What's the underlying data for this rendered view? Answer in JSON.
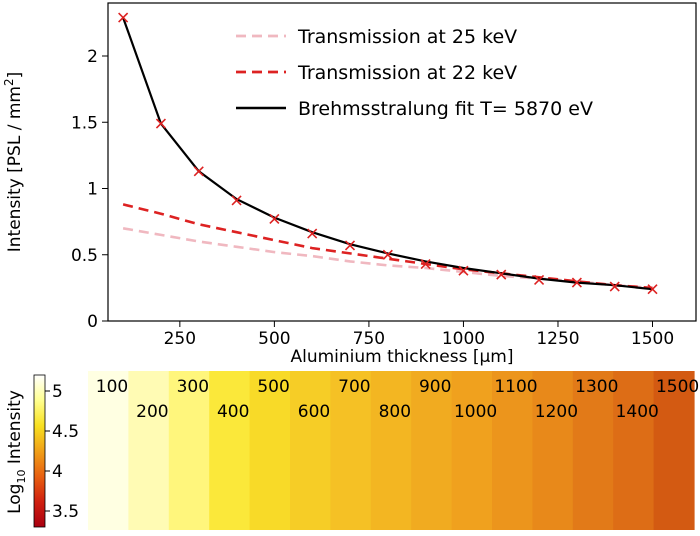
{
  "chart_data": [
    {
      "type": "line",
      "xlabel": "Aluminium thickness [µm]",
      "ylabel_main": "Intensity [PSL / mm",
      "ylabel_sup": "2",
      "ylabel_end": "]",
      "xlim": [
        60,
        1615
      ],
      "ylim": [
        0,
        2.4
      ],
      "xticks": [
        "250",
        "500",
        "750",
        "1000",
        "1250",
        "1500"
      ],
      "yticks": [
        "0",
        "0.5",
        "1",
        "1.5",
        "2"
      ],
      "grid": false,
      "legend_position": "top-right",
      "series": [
        {
          "name": "Transmission at 25 keV",
          "style": "dashed",
          "color": "#f0b8c0",
          "x": [
            100,
            200,
            300,
            400,
            500,
            600,
            700,
            800,
            900,
            1000,
            1100,
            1200,
            1300,
            1400,
            1500
          ],
          "y": [
            0.7,
            0.65,
            0.6,
            0.56,
            0.52,
            0.49,
            0.45,
            0.42,
            0.4,
            0.37,
            0.34,
            0.32,
            0.3,
            0.27,
            0.25
          ]
        },
        {
          "name": "Transmission at 22 keV",
          "style": "dashed",
          "color": "#dd2222",
          "x": [
            100,
            200,
            300,
            400,
            500,
            600,
            700,
            800,
            900,
            1000,
            1100,
            1200,
            1300,
            1400,
            1500
          ],
          "y": [
            0.88,
            0.81,
            0.73,
            0.67,
            0.61,
            0.55,
            0.51,
            0.47,
            0.43,
            0.39,
            0.36,
            0.33,
            0.3,
            0.27,
            0.25
          ]
        },
        {
          "name": "Brehmsstralung fit T= 5870 eV",
          "style": "solid",
          "color": "#000000",
          "x": [
            100,
            200,
            300,
            400,
            500,
            600,
            700,
            800,
            900,
            1000,
            1100,
            1200,
            1300,
            1400,
            1500
          ],
          "y": [
            2.29,
            1.49,
            1.13,
            0.92,
            0.78,
            0.67,
            0.58,
            0.51,
            0.45,
            0.4,
            0.36,
            0.32,
            0.29,
            0.27,
            0.24
          ]
        }
      ],
      "markers": {
        "symbol": "x",
        "color": "#dd2222",
        "x": [
          100,
          200,
          300,
          400,
          500,
          600,
          700,
          800,
          900,
          1000,
          1100,
          1200,
          1300,
          1400,
          1500
        ],
        "y": [
          2.29,
          1.49,
          1.13,
          0.91,
          0.77,
          0.66,
          0.57,
          0.5,
          0.43,
          0.38,
          0.35,
          0.31,
          0.29,
          0.26,
          0.24
        ]
      }
    },
    {
      "type": "heatmap",
      "colorbar_label_prefix": "Log",
      "colorbar_label_sub": "10",
      "colorbar_label_suffix": " Intensity",
      "colorbar_ticks": [
        "5",
        "4.5",
        "4",
        "3.5"
      ],
      "colorbar_range": [
        3.3,
        5.2
      ],
      "colors": [
        "#aa0010",
        "#d02010",
        "#e86010",
        "#f0a018",
        "#f8e020",
        "#ffff90",
        "#ffffff"
      ],
      "strip_labels": [
        "100",
        "200",
        "300",
        "400",
        "500",
        "600",
        "700",
        "800",
        "900",
        "1000",
        "1100",
        "1200",
        "1300",
        "1400",
        "1500"
      ],
      "strip_colors": [
        "#ffffe2",
        "#fffbb4",
        "#fff67c",
        "#fbe83a",
        "#f8da28",
        "#f6cd26",
        "#f5c125",
        "#f3b622",
        "#f1ab20",
        "#f0a11e",
        "#ec951c",
        "#e8891a",
        "#e27a18",
        "#dd6d16",
        "#d35a12"
      ]
    }
  ]
}
